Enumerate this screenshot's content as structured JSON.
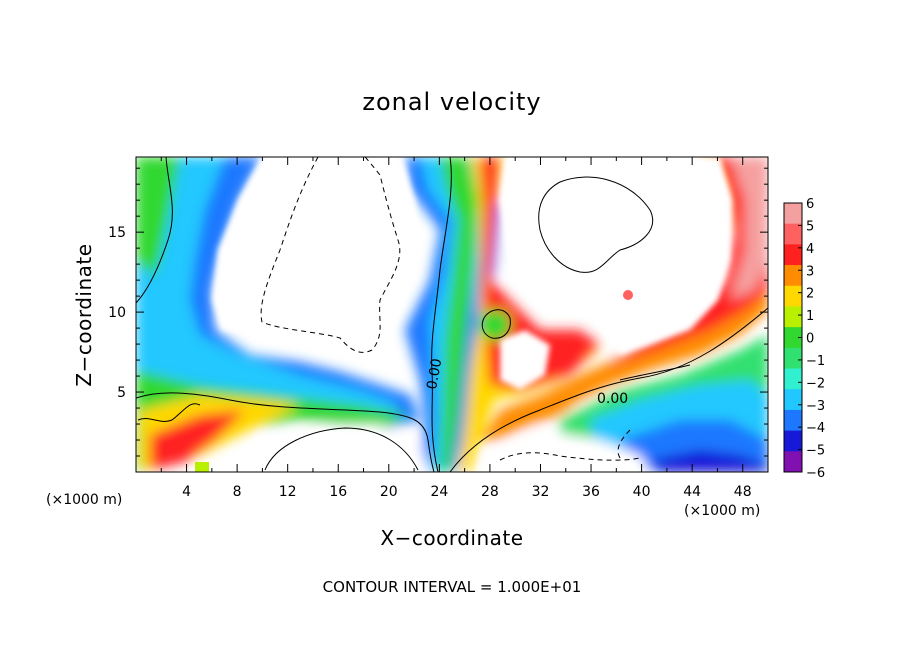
{
  "chart_data": {
    "type": "heatmap",
    "title": "zonal velocity",
    "xlabel": "X−coordinate",
    "ylabel": "Z−coordinate",
    "x_unit_label": "(×1000 m)",
    "x_unit_label_right": "(×1000 m)",
    "footer": "CONTOUR INTERVAL = 1.000E+01",
    "xlim": [
      0,
      50
    ],
    "ylim": [
      0,
      19.7
    ],
    "x_ticks": [
      4,
      8,
      12,
      16,
      20,
      24,
      28,
      32,
      36,
      40,
      44,
      48
    ],
    "x_tick_labels": [
      "4",
      "8",
      "12",
      "16",
      "20",
      "24",
      "28",
      "32",
      "36",
      "40",
      "44",
      "48"
    ],
    "y_ticks": [
      5,
      10,
      15
    ],
    "y_tick_labels": [
      "5",
      "10",
      "15"
    ],
    "colorbar": {
      "levels": [
        6,
        5,
        4,
        3,
        2,
        1,
        0,
        -1,
        -2,
        -3,
        -4,
        -5,
        -6
      ],
      "labels": [
        "6",
        "5",
        "4",
        "3",
        "2",
        "1",
        "0",
        "−1",
        "−2",
        "−3",
        "−4",
        "−5",
        "−6"
      ],
      "colors": [
        "#f5a0a0",
        "#ff6060",
        "#ff2020",
        "#ff8c00",
        "#ffd800",
        "#b8f000",
        "#30d830",
        "#30e070",
        "#30f0d0",
        "#20c8ff",
        "#1e78ff",
        "#1818d8",
        "#8010b0"
      ]
    },
    "contour_labels": [
      "0.00",
      "0.00"
    ],
    "grid": false
  }
}
